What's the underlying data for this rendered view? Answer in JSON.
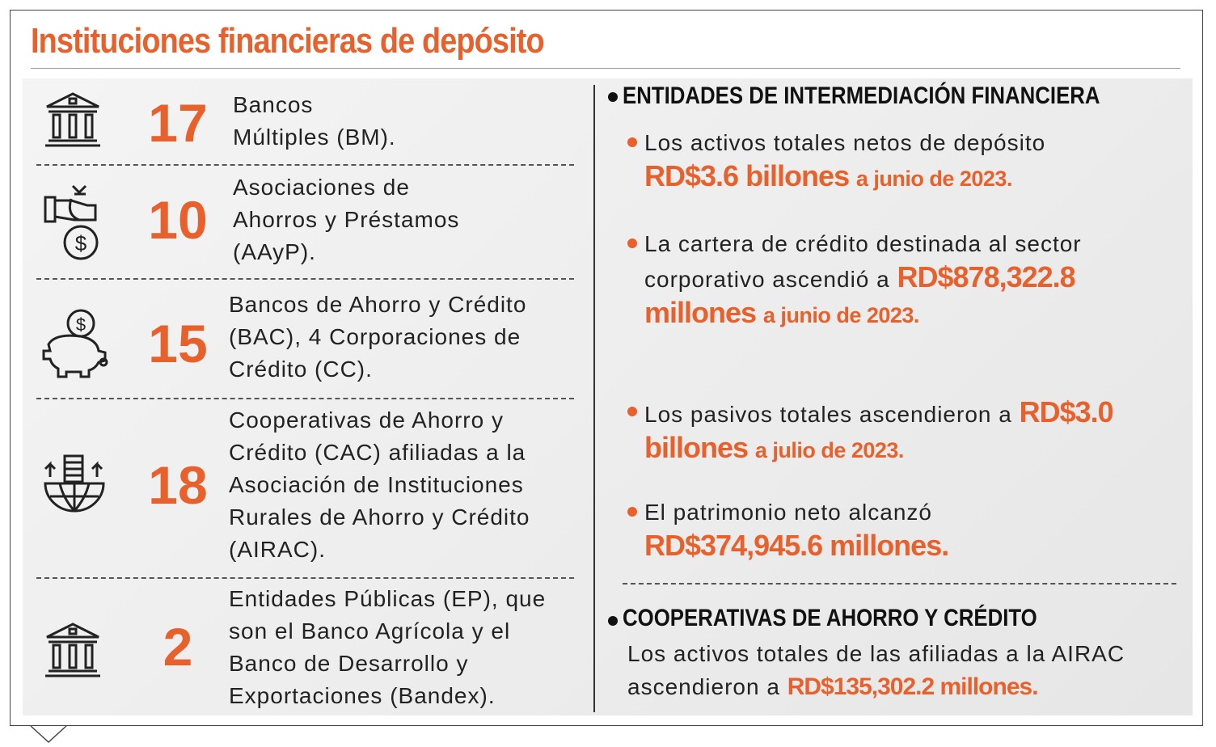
{
  "header": {
    "title": "Instituciones financieras de depósito"
  },
  "institutions": [
    {
      "count": 17,
      "lines": [
        "Bancos",
        "Múltiples (BM)."
      ]
    },
    {
      "count": 10,
      "lines": [
        "Asociaciones de",
        "Ahorros y Préstamos",
        "(AAyP)."
      ]
    },
    {
      "count": 15,
      "lines": [
        "Bancos de Ahorro y Crédito",
        "(BAC), 4 Corporaciones de",
        "Crédito (CC)."
      ]
    },
    {
      "count": 18,
      "lines": [
        "Cooperativas de Ahorro y",
        "Crédito (CAC) afiliadas a la",
        "Asociación de Instituciones",
        "Rurales de Ahorro y Crédito",
        "(AIRAC)."
      ]
    },
    {
      "count": 2,
      "lines": [
        "Entidades Públicas (EP), que",
        "son el Banco Agrícola y el",
        "Banco de Desarrollo y",
        "Exportaciones (Bandex)."
      ]
    }
  ],
  "sections": [
    {
      "heading": "ENTIDADES DE INTERMEDIACIÓN FINANCIERA",
      "bullets": [
        {
          "text": "Los activos totales netos de depósito",
          "highlight": "RD$3.6 billones",
          "suffix": "a junio de 2023."
        },
        {
          "text": "La cartera de crédito destinada al sector corporativo ascendió a",
          "highlight": "RD$878,322.8 millones",
          "suffix": "a junio de 2023."
        },
        {
          "text": "Los pasivos totales  ascendieron a",
          "highlight": "RD$3.0 billones",
          "suffix": "a julio de 2023."
        },
        {
          "text": "El patrimonio neto alcanzó",
          "highlight": "RD$374,945.6 millones."
        }
      ]
    },
    {
      "heading": "COOPERATIVAS DE AHORRO Y CRÉDITO",
      "text": "Los activos totales de las  afiliadas a la AIRAC ascendieron a",
      "highlight": "RD$135,302.2 millones."
    }
  ]
}
